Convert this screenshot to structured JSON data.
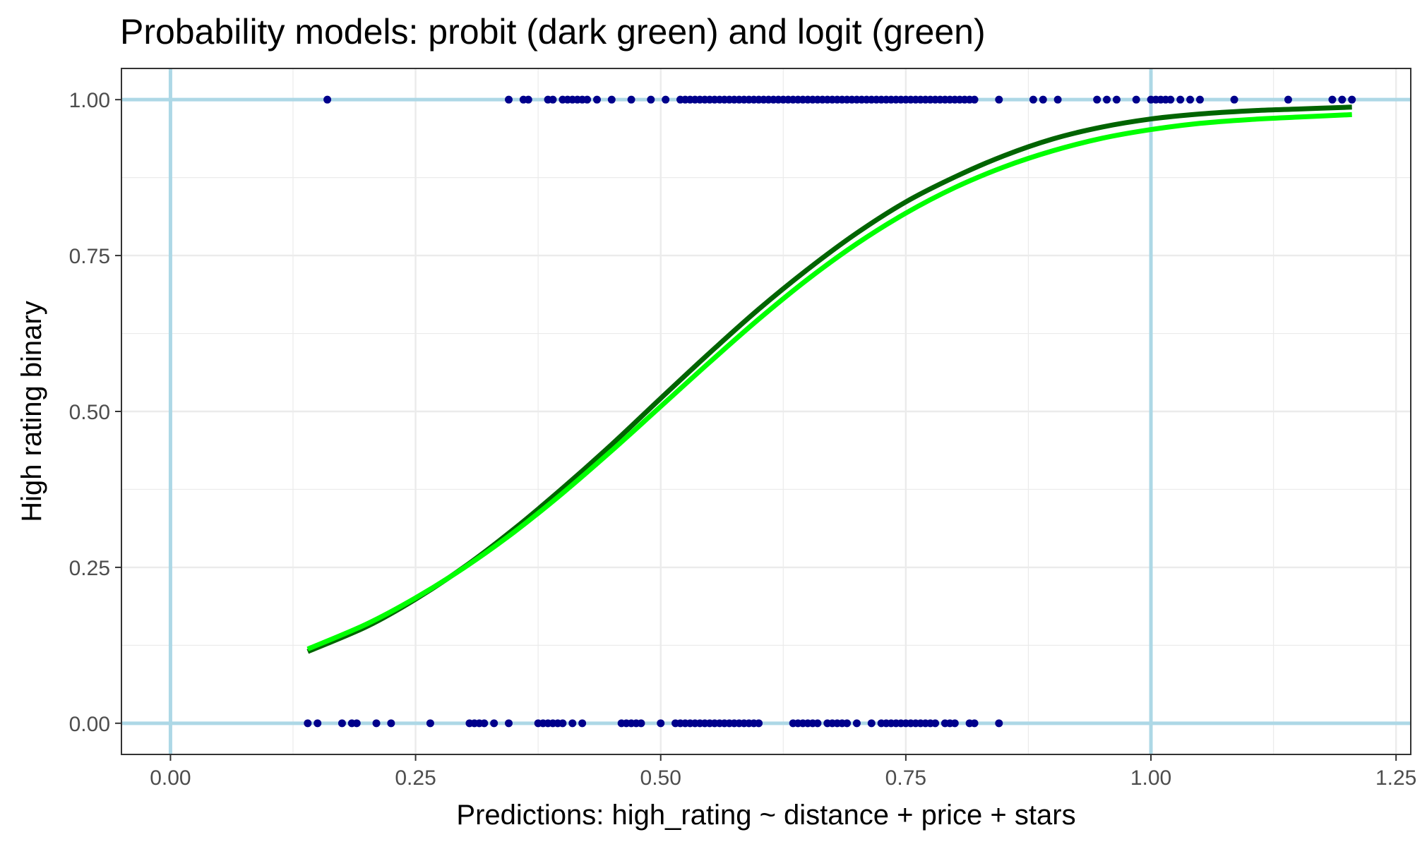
{
  "chart_data": {
    "type": "scatter",
    "title": "Probability models: probit (dark green) and logit (green)",
    "xlabel": "Predictions: high_rating ~ distance + price + stars",
    "ylabel": "High rating binary",
    "xlim": [
      -0.05,
      1.265
    ],
    "ylim": [
      -0.05,
      1.05
    ],
    "x_ticks": [
      0.0,
      0.25,
      0.5,
      0.75,
      1.0,
      1.25
    ],
    "x_tick_labels": [
      "0.00",
      "0.25",
      "0.50",
      "0.75",
      "1.00",
      "1.25"
    ],
    "y_ticks": [
      0.0,
      0.25,
      0.5,
      0.75,
      1.0
    ],
    "y_tick_labels": [
      "0.00",
      "0.25",
      "0.50",
      "0.75",
      "1.00"
    ],
    "grid": true,
    "reference_lines": {
      "x": [
        0,
        1
      ],
      "y": [
        0,
        1
      ],
      "color": "#add8e6"
    },
    "colors": {
      "points": "#00008b",
      "probit": "#006400",
      "logit": "#00ff00",
      "panel_border": "#333333",
      "grid": "#ebebeb"
    },
    "series": [
      {
        "type": "scatter",
        "y": 1,
        "x": [
          0.16,
          0.345,
          0.36,
          0.365,
          0.385,
          0.39,
          0.4,
          0.405,
          0.41,
          0.415,
          0.42,
          0.425,
          0.435,
          0.45,
          0.47,
          0.49,
          0.505,
          0.52,
          0.525,
          0.53,
          0.535,
          0.54,
          0.545,
          0.55,
          0.555,
          0.56,
          0.565,
          0.57,
          0.575,
          0.58,
          0.585,
          0.59,
          0.595,
          0.6,
          0.605,
          0.61,
          0.615,
          0.62,
          0.625,
          0.63,
          0.635,
          0.64,
          0.645,
          0.65,
          0.655,
          0.66,
          0.665,
          0.67,
          0.675,
          0.68,
          0.685,
          0.69,
          0.695,
          0.7,
          0.705,
          0.71,
          0.715,
          0.72,
          0.725,
          0.73,
          0.735,
          0.74,
          0.745,
          0.75,
          0.755,
          0.76,
          0.765,
          0.77,
          0.775,
          0.78,
          0.785,
          0.79,
          0.795,
          0.8,
          0.805,
          0.81,
          0.815,
          0.82,
          0.845,
          0.88,
          0.89,
          0.905,
          0.945,
          0.955,
          0.965,
          0.985,
          1.0,
          1.005,
          1.01,
          1.015,
          1.02,
          1.03,
          1.04,
          1.05,
          1.085,
          1.14,
          1.185,
          1.195,
          1.205
        ]
      },
      {
        "type": "scatter",
        "y": 0,
        "x": [
          0.14,
          0.15,
          0.175,
          0.185,
          0.19,
          0.21,
          0.225,
          0.265,
          0.305,
          0.31,
          0.315,
          0.32,
          0.33,
          0.345,
          0.375,
          0.38,
          0.385,
          0.39,
          0.395,
          0.4,
          0.41,
          0.42,
          0.46,
          0.465,
          0.47,
          0.475,
          0.48,
          0.5,
          0.515,
          0.52,
          0.525,
          0.53,
          0.535,
          0.54,
          0.545,
          0.55,
          0.555,
          0.56,
          0.565,
          0.57,
          0.575,
          0.58,
          0.585,
          0.59,
          0.595,
          0.6,
          0.635,
          0.64,
          0.645,
          0.65,
          0.655,
          0.66,
          0.67,
          0.675,
          0.68,
          0.685,
          0.69,
          0.7,
          0.715,
          0.725,
          0.73,
          0.735,
          0.74,
          0.745,
          0.75,
          0.755,
          0.76,
          0.765,
          0.77,
          0.775,
          0.78,
          0.79,
          0.795,
          0.8,
          0.815,
          0.82,
          0.845
        ]
      },
      {
        "type": "line",
        "name": "probit",
        "x": [
          0.14,
          0.2,
          0.25,
          0.3,
          0.35,
          0.4,
          0.45,
          0.5,
          0.55,
          0.6,
          0.65,
          0.7,
          0.75,
          0.8,
          0.85,
          0.9,
          0.95,
          1.0,
          1.05,
          1.1,
          1.15,
          1.205
        ],
        "y": [
          0.115,
          0.155,
          0.199,
          0.251,
          0.311,
          0.377,
          0.447,
          0.521,
          0.594,
          0.664,
          0.728,
          0.786,
          0.836,
          0.876,
          0.91,
          0.937,
          0.956,
          0.969,
          0.977,
          0.982,
          0.985,
          0.988
        ]
      },
      {
        "type": "line",
        "name": "logit",
        "x": [
          0.14,
          0.2,
          0.25,
          0.3,
          0.35,
          0.4,
          0.45,
          0.5,
          0.55,
          0.6,
          0.65,
          0.7,
          0.75,
          0.8,
          0.85,
          0.9,
          0.95,
          1.0,
          1.05,
          1.1,
          1.15,
          1.205
        ],
        "y": [
          0.119,
          0.159,
          0.201,
          0.25,
          0.306,
          0.369,
          0.437,
          0.508,
          0.579,
          0.648,
          0.712,
          0.769,
          0.818,
          0.859,
          0.892,
          0.918,
          0.938,
          0.952,
          0.962,
          0.968,
          0.972,
          0.976
        ]
      }
    ]
  }
}
